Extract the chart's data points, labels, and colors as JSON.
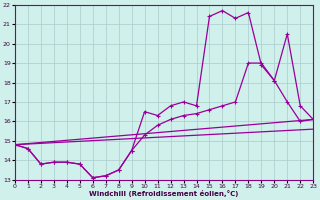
{
  "xlabel": "Windchill (Refroidissement éolien,°C)",
  "background_color": "#cff0eb",
  "grid_color": "#aacccc",
  "line_color": "#990099",
  "xlim": [
    0,
    23
  ],
  "ylim": [
    13,
    22
  ],
  "yticks": [
    13,
    14,
    15,
    16,
    17,
    18,
    19,
    20,
    21,
    22
  ],
  "xticks": [
    0,
    1,
    2,
    3,
    4,
    5,
    6,
    7,
    8,
    9,
    10,
    11,
    12,
    13,
    14,
    15,
    16,
    17,
    18,
    19,
    20,
    21,
    22,
    23
  ],
  "curve1_x": [
    0,
    1,
    2,
    3,
    4,
    5,
    6,
    7,
    8,
    9,
    10,
    11,
    12,
    13,
    14,
    15,
    16,
    17,
    18,
    19,
    20,
    21,
    22,
    23
  ],
  "curve1_y": [
    14.8,
    14.6,
    13.8,
    13.9,
    13.9,
    13.8,
    13.1,
    13.2,
    13.5,
    14.5,
    16.5,
    16.3,
    16.8,
    17.0,
    16.8,
    21.4,
    21.7,
    21.3,
    21.6,
    18.9,
    18.1,
    20.5,
    16.8,
    16.1
  ],
  "curve2_x": [
    0,
    1,
    2,
    3,
    4,
    5,
    6,
    7,
    8,
    9,
    10,
    11,
    12,
    13,
    14,
    15,
    16,
    17,
    18,
    19,
    20,
    21,
    22,
    23
  ],
  "curve2_y": [
    14.8,
    14.6,
    13.8,
    13.9,
    13.9,
    13.8,
    13.1,
    13.2,
    13.5,
    14.5,
    15.3,
    15.8,
    16.1,
    16.3,
    16.4,
    16.6,
    16.8,
    17.0,
    19.0,
    19.0,
    18.1,
    17.0,
    16.0,
    16.1
  ],
  "line1_x": [
    0,
    23
  ],
  "line1_y": [
    14.8,
    16.1
  ],
  "line2_x": [
    0,
    23
  ],
  "line2_y": [
    14.8,
    15.6
  ]
}
